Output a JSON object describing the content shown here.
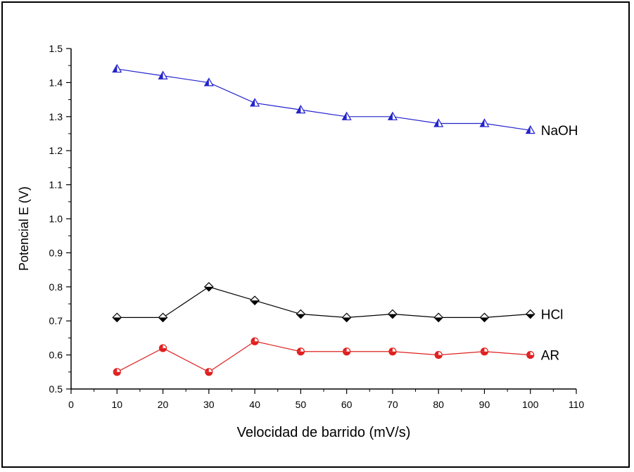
{
  "chart_data": {
    "type": "line",
    "title": "",
    "xlabel": "Velocidad de barrido (mV/s)",
    "ylabel": "Potencial E (V)",
    "xlim": [
      0,
      110
    ],
    "ylim": [
      0.5,
      1.5
    ],
    "xticks": [
      "0",
      "10",
      "20",
      "30",
      "40",
      "50",
      "60",
      "70",
      "80",
      "90",
      "100",
      "110"
    ],
    "yticks": [
      "0.5",
      "0.6",
      "0.7",
      "0.8",
      "0.9",
      "1.0",
      "1.1",
      "1.2",
      "1.3",
      "1.4",
      "1.5"
    ],
    "grid": false,
    "x": [
      10,
      20,
      30,
      40,
      50,
      60,
      70,
      80,
      90,
      100
    ],
    "series": [
      {
        "name": "NaOH",
        "color": "#2323cc",
        "marker": "triangle",
        "values": [
          1.44,
          1.42,
          1.4,
          1.34,
          1.32,
          1.3,
          1.3,
          1.28,
          1.28,
          1.26
        ]
      },
      {
        "name": "HCl",
        "color": "#000000",
        "marker": "diamond",
        "values": [
          0.71,
          0.71,
          0.8,
          0.76,
          0.72,
          0.71,
          0.72,
          0.71,
          0.71,
          0.72
        ]
      },
      {
        "name": "AR",
        "color": "#e02020",
        "marker": "circle",
        "values": [
          0.55,
          0.62,
          0.55,
          0.64,
          0.61,
          0.61,
          0.61,
          0.6,
          0.61,
          0.6
        ]
      }
    ]
  }
}
